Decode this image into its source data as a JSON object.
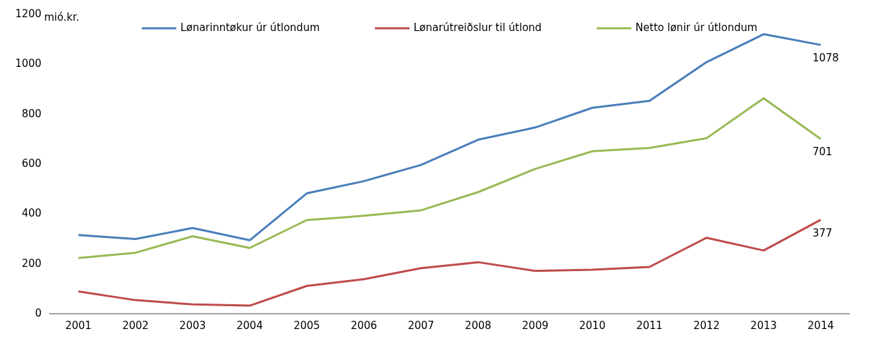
{
  "chart_data": {
    "type": "line",
    "ylabel": "mió.kr.",
    "categories": [
      "2001",
      "2002",
      "2003",
      "2004",
      "2005",
      "2006",
      "2007",
      "2008",
      "2009",
      "2010",
      "2011",
      "2012",
      "2013",
      "2014"
    ],
    "series": [
      {
        "name": "Lønarinntøkur úr útlondum",
        "color": "#4a7ebb",
        "values": [
          316,
          300,
          344,
          295,
          483,
          532,
          597,
          698,
          747,
          826,
          854,
          1009,
          1121,
          1078
        ],
        "value_labels": [
          null,
          null,
          null,
          null,
          null,
          null,
          null,
          null,
          null,
          null,
          null,
          null,
          null,
          "1078"
        ]
      },
      {
        "name": "Lønarútreiðslur til útlond",
        "color": "#be4b48",
        "values": [
          90,
          55,
          38,
          33,
          112,
          139,
          183,
          207,
          172,
          177,
          188,
          305,
          254,
          377
        ],
        "value_labels": [
          null,
          null,
          null,
          null,
          null,
          null,
          null,
          null,
          null,
          null,
          null,
          null,
          null,
          "377"
        ]
      },
      {
        "name": "Netto lønir úr útlondum",
        "color": "#98b954",
        "values": [
          224,
          245,
          311,
          264,
          376,
          393,
          415,
          488,
          581,
          652,
          665,
          704,
          864,
          701
        ],
        "value_labels": [
          null,
          null,
          null,
          null,
          null,
          null,
          null,
          null,
          null,
          null,
          null,
          null,
          null,
          "701"
        ]
      }
    ],
    "ylim": [
      0,
      1200
    ],
    "yticks": [
      0,
      200,
      400,
      600,
      800,
      1000,
      1200
    ],
    "grid": false,
    "legend": "top",
    "marker": "none",
    "line_style": "solid"
  }
}
